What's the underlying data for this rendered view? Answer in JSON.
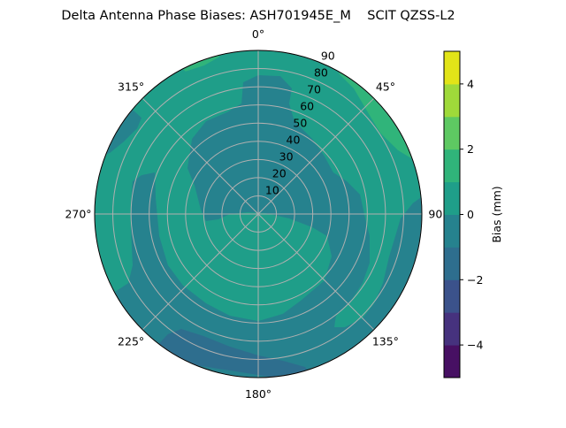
{
  "chart_data": {
    "type": "polar-contour",
    "title": "Delta Antenna Phase Biases: ASH701945E_M    SCIT QZSS-L2",
    "angular_ticks": [
      "0°",
      "45°",
      "90°",
      "135°",
      "180°",
      "225°",
      "270°",
      "315°"
    ],
    "angular_tick_values": [
      0,
      45,
      90,
      135,
      180,
      225,
      270,
      315
    ],
    "radial_ticks": [
      "10",
      "20",
      "30",
      "40",
      "50",
      "60",
      "70",
      "80",
      "90"
    ],
    "radial_tick_values": [
      10,
      20,
      30,
      40,
      50,
      60,
      70,
      80,
      90
    ],
    "rlim": [
      0,
      90
    ],
    "theta_zero": "north",
    "theta_direction": "clockwise",
    "grid": true,
    "colorbar": {
      "label": "Bias (mm)",
      "levels": [
        -5,
        -4,
        -3,
        -2,
        -1,
        0,
        1,
        2,
        3,
        4,
        5
      ],
      "colors": [
        "#471063",
        "#46327e",
        "#3b528b",
        "#2e6e8e",
        "#26828e",
        "#1f9e89",
        "#30b47a",
        "#5ec962",
        "#9fda3a",
        "#e2e418"
      ],
      "ticks": [
        "4",
        "2",
        "0",
        "−2",
        "−4"
      ],
      "tick_values": [
        4,
        2,
        0,
        -2,
        -4
      ],
      "colormap": "viridis"
    },
    "background_band": [
      -1,
      0
    ],
    "regions": [
      {
        "band": [
          0,
          1
        ],
        "points": [
          [
            287,
            100
          ],
          [
            315,
            100
          ],
          [
            0,
            100
          ],
          [
            45,
            100
          ],
          [
            84.5,
            97
          ],
          [
            84,
            90.4
          ],
          [
            86,
            85.3
          ],
          [
            91.8,
            78.3
          ],
          [
            99.2,
            76.4
          ],
          [
            108,
            75.7
          ],
          [
            118.9,
            78.4
          ],
          [
            127.6,
            80.5
          ],
          [
            135,
            81.2
          ],
          [
            142.6,
            78.4
          ],
          [
            146.1,
            75
          ],
          [
            142.6,
            70.4
          ],
          [
            133,
            69.9
          ],
          [
            123.5,
            68.8
          ],
          [
            113.6,
            66.9
          ],
          [
            101.2,
            62.5
          ],
          [
            92.4,
            58.9
          ],
          [
            79.2,
            57
          ],
          [
            69.7,
            51.9
          ],
          [
            61.1,
            47.2
          ],
          [
            49.1,
            48.3
          ],
          [
            35.7,
            50.9
          ],
          [
            21.3,
            54.8
          ],
          [
            15.6,
            63.1
          ],
          [
            15,
            71.5
          ],
          [
            9.1,
            76.8
          ],
          [
            0,
            76.4
          ],
          [
            353.5,
            72.9
          ],
          [
            351.4,
            61.5
          ],
          [
            343.1,
            58.5
          ],
          [
            330.7,
            58.6
          ],
          [
            318.6,
            55.1
          ],
          [
            303,
            46.4
          ],
          [
            294,
            38.3
          ],
          [
            274.4,
            31.7
          ],
          [
            262.3,
            29
          ],
          [
            262.4,
            22.1
          ],
          [
            270,
            15.6
          ],
          [
            279.5,
            5.9
          ],
          [
            82.9,
            3.9
          ],
          [
            98.1,
            17.2
          ],
          [
            103.8,
            30.6
          ],
          [
            107.8,
            39.8
          ],
          [
            120,
            46.6
          ],
          [
            135,
            51.6
          ],
          [
            153.9,
            53.1
          ],
          [
            166.1,
            56.6
          ],
          [
            180,
            58.9
          ],
          [
            195.6,
            58.1
          ],
          [
            210.3,
            56.9
          ],
          [
            226.4,
            57.1
          ],
          [
            240.4,
            57.1
          ],
          [
            257.4,
            55.8
          ],
          [
            278.3,
            57
          ],
          [
            291.9,
            61.3
          ],
          [
            288.4,
            67.7
          ],
          [
            284.6,
            71.4
          ],
          [
            274.8,
            70.3
          ],
          [
            262.9,
            70.6
          ],
          [
            247.8,
            74.6
          ],
          [
            242,
            81
          ],
          [
            241.5,
            89.7
          ],
          [
            243,
            100
          ],
          [
            265,
            100
          ]
        ]
      },
      {
        "band": [
          -1,
          0
        ],
        "points": [
          [
            287.8,
            95.5
          ],
          [
            292.7,
            88
          ],
          [
            298.3,
            84
          ],
          [
            305.3,
            81.6
          ],
          [
            309.5,
            83.2
          ],
          [
            310,
            100
          ],
          [
            288,
            100
          ]
        ]
      },
      {
        "band": [
          -2,
          -1
        ],
        "points": [
          [
            216.9,
            82.7
          ],
          [
            213.8,
            76.1
          ],
          [
            204.2,
            73.6
          ],
          [
            192,
            74.6
          ],
          [
            180,
            77.8
          ],
          [
            170.4,
            81.9
          ],
          [
            163,
            88
          ],
          [
            160,
            100
          ],
          [
            218,
            100
          ]
        ]
      },
      {
        "band": [
          1,
          2
        ],
        "points": [
          [
            29.8,
            89.1
          ],
          [
            37.3,
            86.8
          ],
          [
            46.4,
            82.5
          ],
          [
            56.3,
            80.6
          ],
          [
            65.5,
            84.5
          ],
          [
            71.4,
            91.4
          ],
          [
            72,
            100
          ],
          [
            28,
            100
          ]
        ]
      },
      {
        "band": [
          1,
          2
        ],
        "points": [
          [
            333,
            88
          ],
          [
            340,
            87
          ],
          [
            346,
            89
          ],
          [
            350,
            100
          ],
          [
            330,
            100
          ]
        ]
      }
    ]
  }
}
